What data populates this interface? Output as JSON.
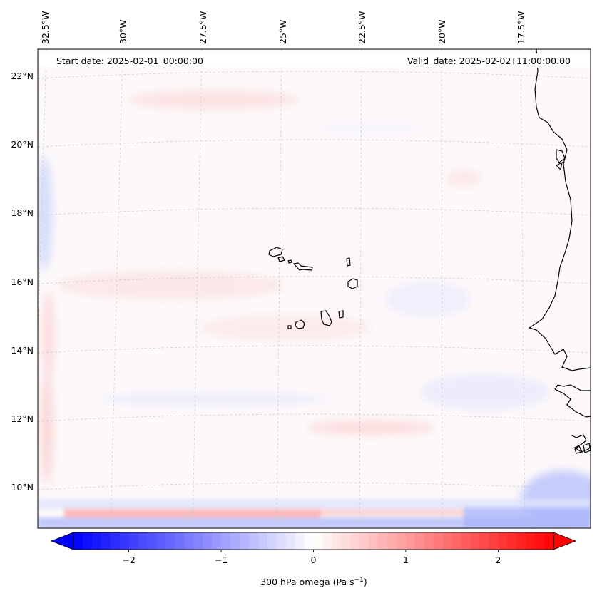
{
  "map": {
    "start_date": "Start date: 2025-02-01_00:00:00",
    "valid_date": "Valid_date: 2025-02-02T11:00:00.00",
    "longitude_labels": [
      "32.5°W",
      "30°W",
      "27.5°W",
      "25°W",
      "22.5°W",
      "20°W",
      "17.5°W"
    ],
    "latitude_labels": [
      "22°N",
      "20°N",
      "18°N",
      "16°N",
      "14°N",
      "12°N",
      "10°N"
    ],
    "region": "Cabo Verde and West African coast"
  },
  "colorbar": {
    "label": "300 hPa omega (Pa s",
    "label_exponent": "−1",
    "label_close": ")",
    "ticks": [
      "−2",
      "−1",
      "0",
      "1",
      "2"
    ],
    "tick_values": [
      -2,
      -1,
      0,
      1,
      2
    ],
    "range": [
      -2.6,
      2.6
    ],
    "colors": {
      "min": "#0000ff",
      "mid": "#ffffff",
      "max": "#ff0000"
    }
  }
}
